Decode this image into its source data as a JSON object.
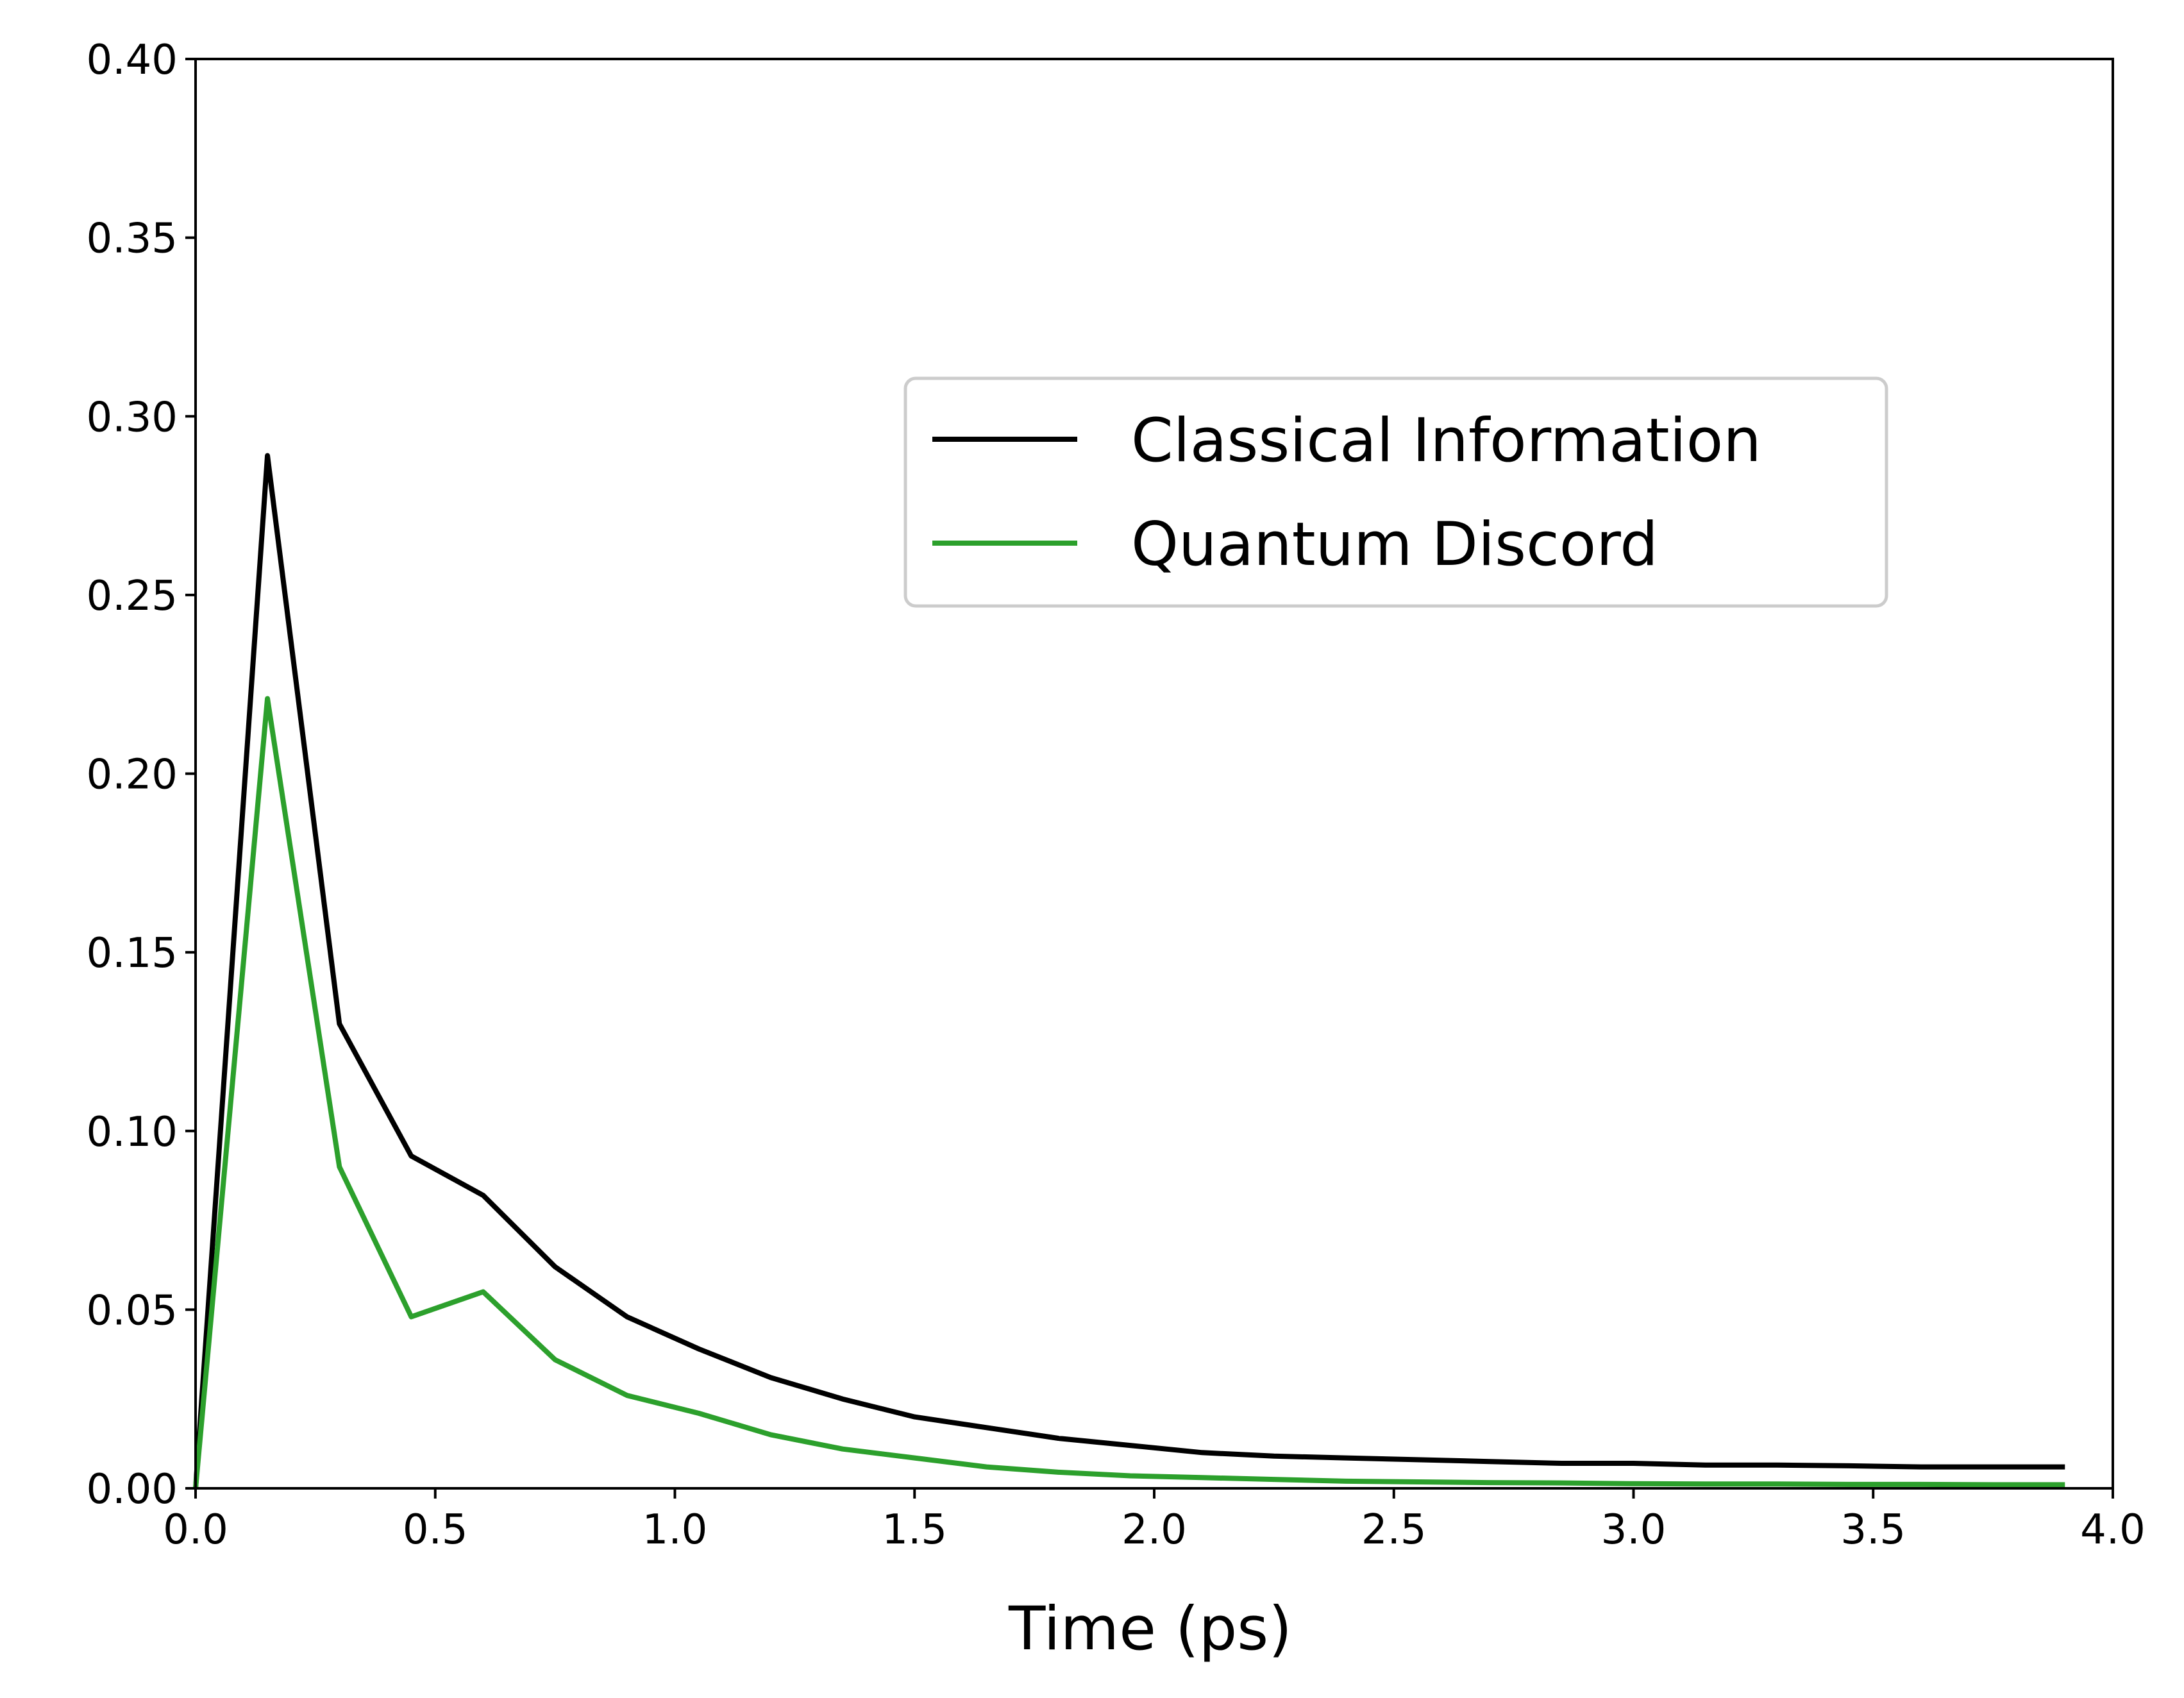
{
  "chart_data": {
    "type": "line",
    "title": "",
    "xlabel": "Time (ps)",
    "ylabel": "",
    "xlim": [
      0.0,
      4.0
    ],
    "ylim": [
      0.0,
      0.4
    ],
    "xticks": [
      "0.0",
      "0.5",
      "1.0",
      "1.5",
      "2.0",
      "2.5",
      "3.0",
      "3.5",
      "4.0"
    ],
    "yticks": [
      "0.00",
      "0.05",
      "0.10",
      "0.15",
      "0.20",
      "0.25",
      "0.30",
      "0.35",
      "0.40"
    ],
    "grid": false,
    "legend": {
      "placement": "upper-right-center"
    },
    "x": [
      0.0,
      0.15,
      0.3,
      0.45,
      0.6,
      0.75,
      0.9,
      1.05,
      1.2,
      1.35,
      1.5,
      1.65,
      1.8,
      1.95,
      2.1,
      2.25,
      2.4,
      2.55,
      2.7,
      2.85,
      3.0,
      3.15,
      3.3,
      3.45,
      3.6,
      3.75,
      3.9
    ],
    "series": [
      {
        "name": "Classical Information",
        "color": "#000000",
        "values": [
          0.0,
          0.289,
          0.13,
          0.093,
          0.082,
          0.062,
          0.048,
          0.039,
          0.031,
          0.025,
          0.02,
          0.017,
          0.014,
          0.012,
          0.01,
          0.009,
          0.0085,
          0.008,
          0.0075,
          0.007,
          0.007,
          0.0065,
          0.0065,
          0.0063,
          0.006,
          0.006,
          0.006
        ]
      },
      {
        "name": "Quantum Discord",
        "color": "#2ca02c",
        "values": [
          0.0,
          0.221,
          0.09,
          0.048,
          0.055,
          0.036,
          0.026,
          0.021,
          0.015,
          0.011,
          0.0085,
          0.006,
          0.0045,
          0.0035,
          0.003,
          0.0025,
          0.002,
          0.0018,
          0.0016,
          0.0015,
          0.0013,
          0.0012,
          0.0012,
          0.0011,
          0.0011,
          0.001,
          0.001
        ]
      }
    ]
  }
}
